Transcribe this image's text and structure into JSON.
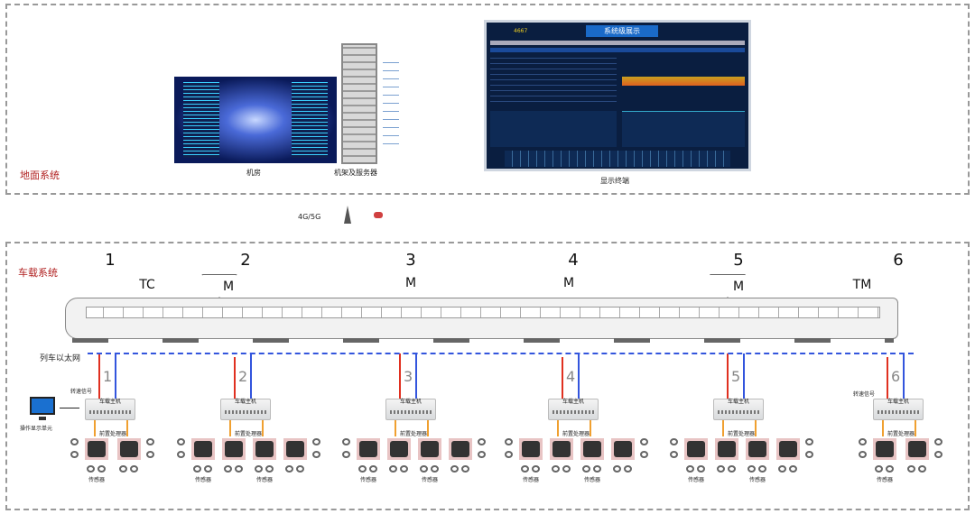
{
  "ground": {
    "title": "地面系统",
    "server_room": "机房",
    "rack": "机架及服务器",
    "display": "显示终端",
    "screen_title": "系统级展示",
    "screen_count": "4667"
  },
  "link": {
    "label": "4G/5G"
  },
  "vehicle": {
    "title": "车载系统",
    "ethernet": "列车以太网",
    "speed_signal": "转速信号",
    "host": "车载主机",
    "processor": "前置处理器",
    "sensor": "传感器",
    "operator_display": "操作显示单元"
  },
  "cars": [
    {
      "num": "1",
      "type": "TC"
    },
    {
      "num": "2",
      "type": "M"
    },
    {
      "num": "3",
      "type": "M"
    },
    {
      "num": "4",
      "type": "M"
    },
    {
      "num": "5",
      "type": "M"
    },
    {
      "num": "6",
      "type": "TM"
    }
  ],
  "colors": {
    "section_label": "#b02020",
    "ethernet": "#3355dd",
    "signal": "#e03020",
    "processor_link": "#f0a030"
  }
}
